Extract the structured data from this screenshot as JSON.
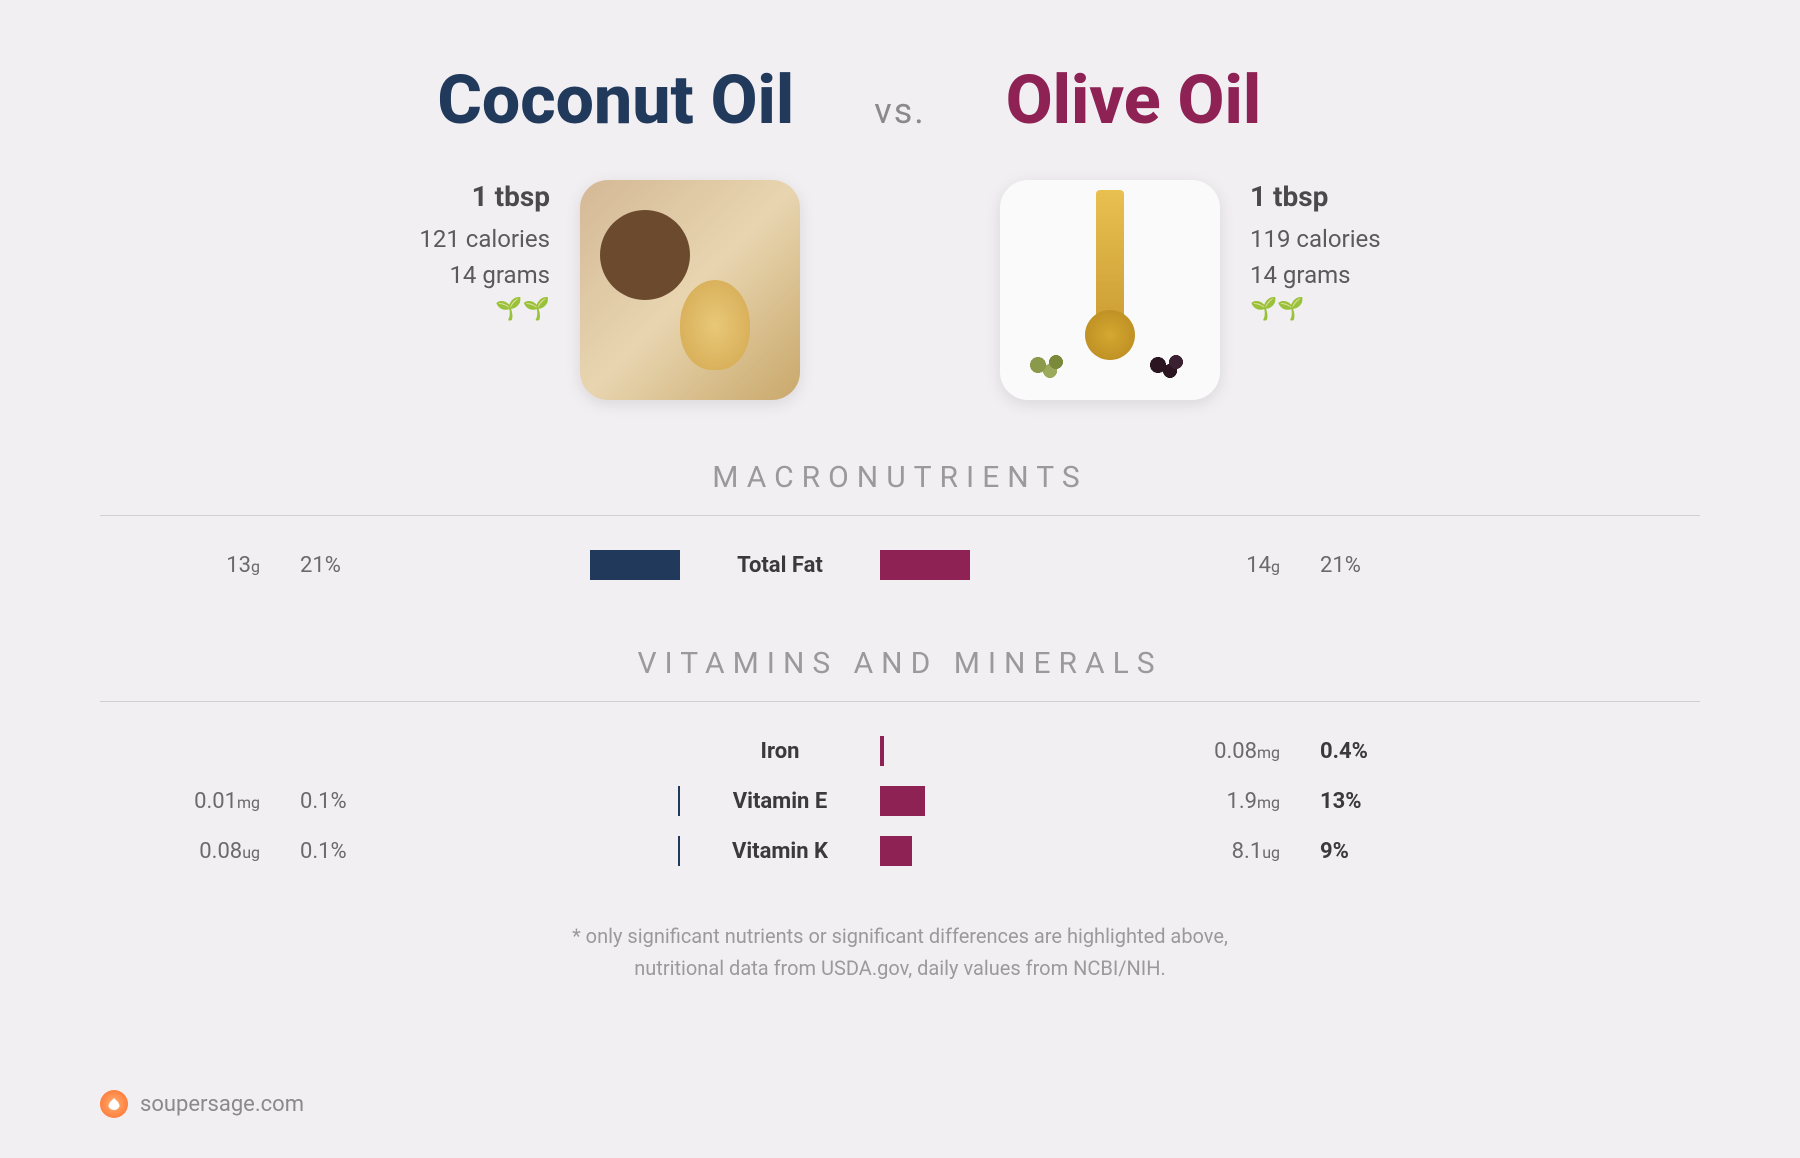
{
  "header": {
    "left_title": "Coconut Oil",
    "vs": "vs.",
    "right_title": "Olive Oil"
  },
  "left_product": {
    "serving": "1 tbsp",
    "calories": "121 calories",
    "grams": "14 grams",
    "sprouts": "🌱🌱"
  },
  "right_product": {
    "serving": "1 tbsp",
    "calories": "119 calories",
    "grams": "14 grams",
    "sprouts": "🌱🌱"
  },
  "sections": {
    "macro_title": "MACRONUTRIENTS",
    "vitamins_title": "VITAMINS AND MINERALS"
  },
  "macros": {
    "total_fat": {
      "label": "Total Fat",
      "left_val": "13",
      "left_unit": "g",
      "left_pct": "21%",
      "left_bar_width": 90,
      "right_val": "14",
      "right_unit": "g",
      "right_pct": "21%",
      "right_bar_width": 90
    }
  },
  "vitamins": {
    "iron": {
      "label": "Iron",
      "left_val": "",
      "left_unit": "",
      "left_pct": "",
      "left_bar_width": 0,
      "right_val": "0.08",
      "right_unit": "mg",
      "right_pct": "0.4%",
      "right_bar_width": 4
    },
    "vitamin_e": {
      "label": "Vitamin E",
      "left_val": "0.01",
      "left_unit": "mg",
      "left_pct": "0.1%",
      "left_bar_width": 2,
      "right_val": "1.9",
      "right_unit": "mg",
      "right_pct": "13%",
      "right_bar_width": 45
    },
    "vitamin_k": {
      "label": "Vitamin K",
      "left_val": "0.08",
      "left_unit": "ug",
      "left_pct": "0.1%",
      "left_bar_width": 2,
      "right_val": "8.1",
      "right_unit": "ug",
      "right_pct": "9%",
      "right_bar_width": 32
    }
  },
  "footnote": {
    "line1": "* only significant nutrients or significant differences are highlighted above,",
    "line2": "nutritional data from USDA.gov, daily values from NCBI/NIH."
  },
  "footer": {
    "site": "soupersage.com"
  },
  "colors": {
    "navy": "#213a5c",
    "maroon": "#8e2255",
    "bg": "#f2eff3"
  }
}
